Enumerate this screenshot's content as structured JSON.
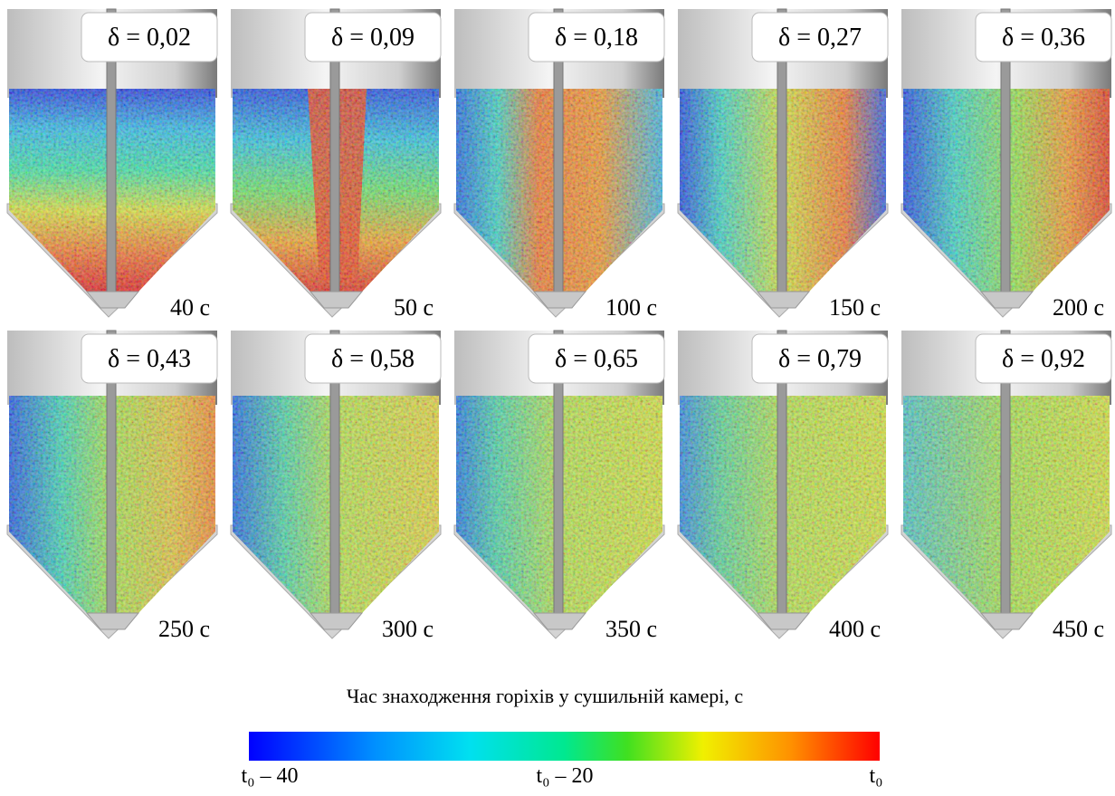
{
  "panels": [
    {
      "delta": "δ = 0,02",
      "time": "40 с"
    },
    {
      "delta": "δ = 0,09",
      "time": "50 с"
    },
    {
      "delta": "δ = 0,18",
      "time": "100 с"
    },
    {
      "delta": "δ = 0,27",
      "time": "150 с"
    },
    {
      "delta": "δ = 0,36",
      "time": "200 с"
    },
    {
      "delta": "δ = 0,43",
      "time": "250 с"
    },
    {
      "delta": "δ = 0,58",
      "time": "300 с"
    },
    {
      "delta": "δ = 0,65",
      "time": "350 с"
    },
    {
      "delta": "δ = 0,79",
      "time": "400 с"
    },
    {
      "delta": "δ = 0,92",
      "time": "450 с"
    }
  ],
  "colorbar": {
    "title": "Час знаходження горіхів у сушильній камері, с",
    "labels": [
      "t₀ – 40",
      "t₀ – 20",
      "t₀"
    ]
  }
}
